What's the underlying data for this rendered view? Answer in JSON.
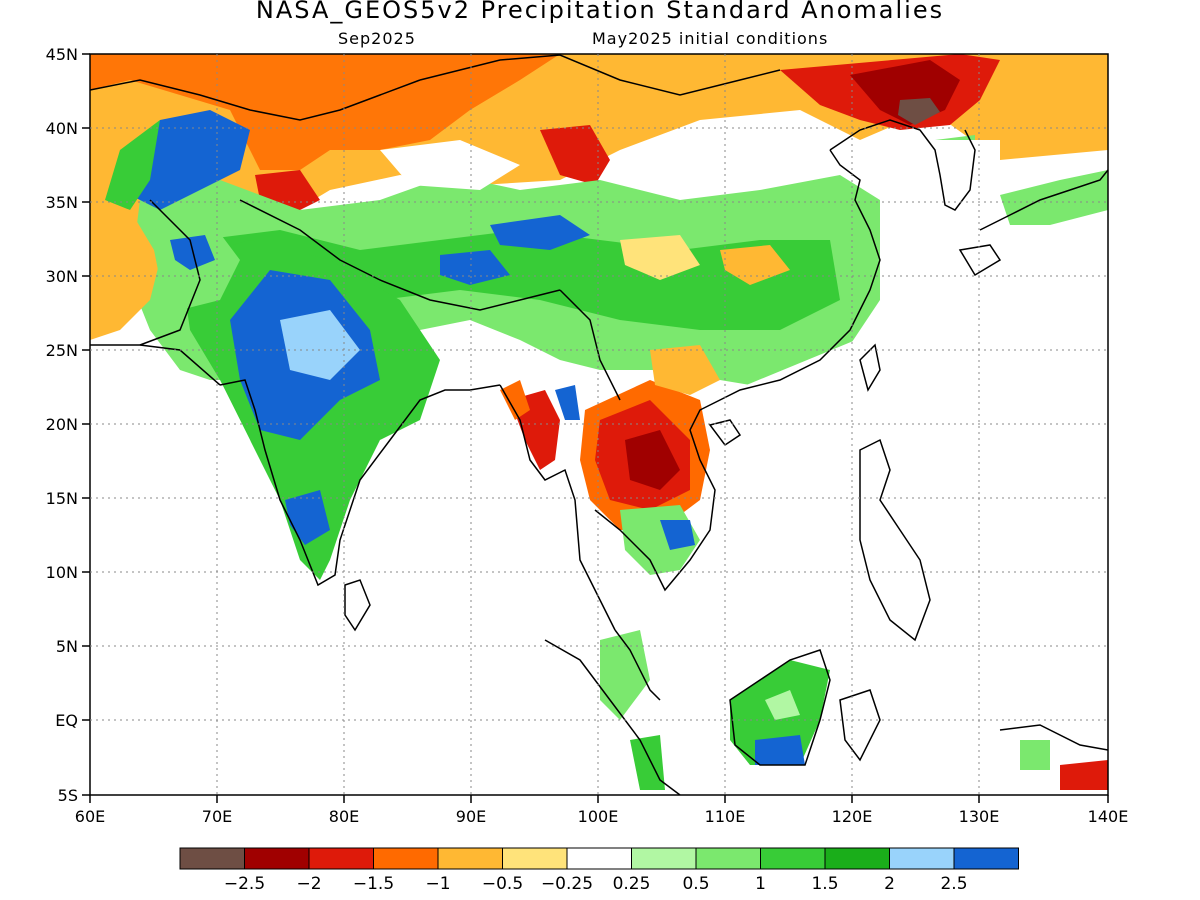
{
  "title": "NASA_GEOS5v2 Precipitation Standard Anomalies",
  "subtitle_left": "Sep2025",
  "subtitle_right": "May2025 initial conditions",
  "lat_ticks": [
    "45N",
    "40N",
    "35N",
    "30N",
    "25N",
    "20N",
    "15N",
    "10N",
    "5N",
    "EQ",
    "5S"
  ],
  "lon_ticks": [
    "60E",
    "70E",
    "80E",
    "90E",
    "100E",
    "110E",
    "120E",
    "130E",
    "140E"
  ],
  "colorbar": {
    "colors": [
      "#6e4e44",
      "#a00000",
      "#de1a0a",
      "#ff6a00",
      "#ffb833",
      "#ffe37a",
      "#ffffff",
      "#b1f7a3",
      "#7be86e",
      "#38cc37",
      "#1aae1a",
      "#99d3fb",
      "#1464d2"
    ],
    "labels": [
      "−2.5",
      "−2",
      "−1.5",
      "−1",
      "−0.5",
      "−0.25",
      "0.25",
      "0.5",
      "1",
      "1.5",
      "2",
      "2.5"
    ]
  }
}
